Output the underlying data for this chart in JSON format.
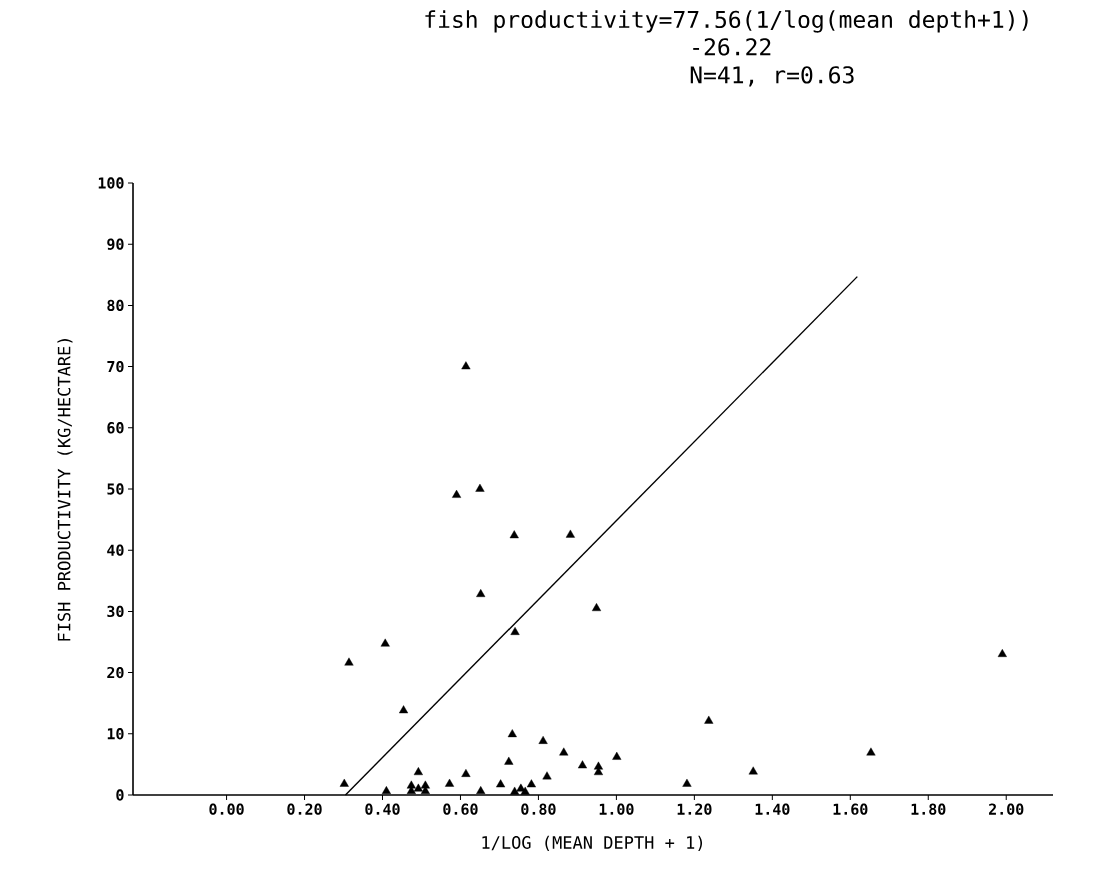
{
  "chart_data": {
    "type": "scatter",
    "annotations": [
      "fish productivity=77.56(1/log(mean depth+1))",
      "-26.22",
      "N=41, r=0.63"
    ],
    "xlabel": "1/LOG (MEAN DEPTH + 1)",
    "ylabel": "FISH PRODUCTIVITY (KG/HECTARE)",
    "xlim": [
      -0.24,
      2.12
    ],
    "ylim": [
      0,
      100
    ],
    "xticks": [
      {
        "value": 0,
        "label": "0.00"
      },
      {
        "value": 0.2,
        "label": "0.20"
      },
      {
        "value": 0.4,
        "label": "0.40"
      },
      {
        "value": 0.6,
        "label": "0.60"
      },
      {
        "value": 0.8,
        "label": "0.80"
      },
      {
        "value": 1.0,
        "label": "1.00"
      },
      {
        "value": 1.2,
        "label": "1.20"
      },
      {
        "value": 1.4,
        "label": "1.40"
      },
      {
        "value": 1.6,
        "label": "1.60"
      },
      {
        "value": 1.8,
        "label": "1.80"
      },
      {
        "value": 2.0,
        "label": "2.00"
      }
    ],
    "yticks": [
      0,
      10,
      20,
      30,
      40,
      50,
      60,
      70,
      80,
      90,
      100
    ],
    "marker": "triangle",
    "grid": false,
    "series": [
      {
        "type": "scatter",
        "color": "#000000",
        "x": [
          0.614,
          0.59,
          0.65,
          0.738,
          0.882,
          0.652,
          0.949,
          0.74,
          0.407,
          0.314,
          0.454,
          0.733,
          0.812,
          0.865,
          0.724,
          0.913,
          0.954,
          0.954,
          1.001,
          0.492,
          0.614,
          0.302,
          0.822,
          0.572,
          0.703,
          0.782,
          0.41,
          0.474,
          0.51,
          0.652,
          0.739,
          0.766,
          1.181,
          1.237,
          1.351,
          1.653,
          1.99,
          0.474,
          0.51,
          0.492,
          0.755
        ],
        "values": [
          70,
          49,
          50,
          42.4,
          42.5,
          32.8,
          30.5,
          26.6,
          24.7,
          21.6,
          13.8,
          9.9,
          8.8,
          6.9,
          5.4,
          4.8,
          4.6,
          3.7,
          6.2,
          3.7,
          3.4,
          1.8,
          3.0,
          1.8,
          1.7,
          1.7,
          0.6,
          1.5,
          1.5,
          0.6,
          0.5,
          0.5,
          1.8,
          12.1,
          3.8,
          6.9,
          23,
          0.6,
          0.6,
          1.0,
          1.0
        ]
      },
      {
        "type": "line",
        "color": "#000000",
        "marker": "none",
        "x": [
          0.305,
          1.618
        ],
        "values": [
          0,
          84.7
        ]
      }
    ]
  }
}
